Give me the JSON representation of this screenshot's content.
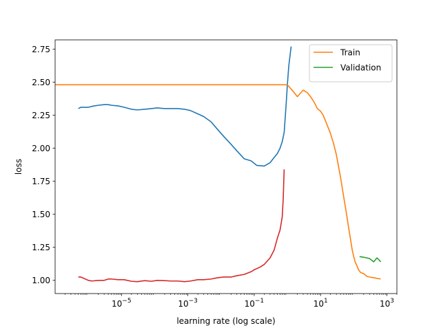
{
  "chart_data": {
    "type": "line",
    "xlabel": "learning rate (log scale)",
    "ylabel": "loss",
    "x_scale": "log",
    "xlim": [
      1e-07,
      2000
    ],
    "ylim": [
      0.9,
      2.82
    ],
    "x_ticks": [
      {
        "value": 1e-05,
        "base": "10",
        "exp": "−5"
      },
      {
        "value": 0.001,
        "base": "10",
        "exp": "−3"
      },
      {
        "value": 0.1,
        "base": "10",
        "exp": "−1"
      },
      {
        "value": 10,
        "base": "10",
        "exp": "1"
      },
      {
        "value": 1000,
        "base": "10",
        "exp": "3"
      }
    ],
    "y_ticks": [
      {
        "value": 1.0,
        "label": "1.00"
      },
      {
        "value": 1.25,
        "label": "1.25"
      },
      {
        "value": 1.5,
        "label": "1.50"
      },
      {
        "value": 1.75,
        "label": "1.75"
      },
      {
        "value": 2.0,
        "label": "2.00"
      },
      {
        "value": 2.25,
        "label": "2.25"
      },
      {
        "value": 2.5,
        "label": "2.50"
      },
      {
        "value": 2.75,
        "label": "2.75"
      }
    ],
    "grid": false,
    "legend_position": "top-right",
    "series": [
      {
        "color": "#1f77b4",
        "x": [
          5e-07,
          6e-07,
          1e-06,
          1.5e-06,
          2e-06,
          3e-06,
          4e-06,
          5e-06,
          8e-06,
          1.2e-05,
          2e-05,
          3e-05,
          5e-05,
          8e-05,
          0.00012,
          0.0002,
          0.0003,
          0.0005,
          0.0008,
          0.0012,
          0.002,
          0.003,
          0.005,
          0.008,
          0.012,
          0.02,
          0.03,
          0.05,
          0.08,
          0.12,
          0.2,
          0.3,
          0.4,
          0.5,
          0.6,
          0.7,
          0.8,
          0.9,
          1.0,
          1.1,
          1.2,
          1.3
        ],
        "y": [
          2.3,
          2.31,
          2.31,
          2.32,
          2.325,
          2.33,
          2.33,
          2.325,
          2.32,
          2.31,
          2.295,
          2.29,
          2.295,
          2.3,
          2.305,
          2.3,
          2.3,
          2.3,
          2.295,
          2.285,
          2.26,
          2.24,
          2.2,
          2.14,
          2.09,
          2.03,
          1.98,
          1.92,
          1.905,
          1.87,
          1.865,
          1.89,
          1.93,
          1.96,
          2.0,
          2.05,
          2.12,
          2.3,
          2.48,
          2.62,
          2.7,
          2.77
        ]
      },
      {
        "color": "#d62728",
        "x": [
          5e-07,
          6e-07,
          1e-06,
          1.3e-06,
          2e-06,
          3e-06,
          4e-06,
          5e-06,
          8e-06,
          1.2e-05,
          2e-05,
          3e-05,
          5e-05,
          8e-05,
          0.00012,
          0.0002,
          0.0003,
          0.0005,
          0.0008,
          0.0012,
          0.002,
          0.003,
          0.005,
          0.008,
          0.012,
          0.02,
          0.03,
          0.05,
          0.08,
          0.1,
          0.15,
          0.2,
          0.3,
          0.4,
          0.5,
          0.6,
          0.7,
          0.75,
          0.8
        ],
        "y": [
          1.025,
          1.025,
          1.0,
          0.995,
          1.0,
          1.0,
          1.01,
          1.01,
          1.005,
          1.005,
          0.993,
          0.99,
          0.998,
          0.993,
          1.0,
          0.998,
          0.995,
          0.995,
          0.99,
          0.995,
          1.005,
          1.005,
          1.01,
          1.02,
          1.025,
          1.025,
          1.035,
          1.045,
          1.065,
          1.08,
          1.1,
          1.12,
          1.17,
          1.23,
          1.32,
          1.38,
          1.48,
          1.62,
          1.84
        ]
      },
      {
        "name": "Train",
        "color": "#ff7f0e",
        "x": [
          1e-07,
          0.1,
          1.0,
          1.5,
          2.0,
          3.0,
          4.0,
          5.0,
          6.0,
          7.0,
          8.0,
          10,
          12,
          15,
          20,
          25,
          30,
          40,
          50,
          60,
          70,
          80,
          90,
          100,
          110,
          120,
          140,
          160,
          200,
          250,
          300,
          400,
          500,
          600,
          650
        ],
        "y": [
          2.48,
          2.48,
          2.48,
          2.43,
          2.39,
          2.44,
          2.42,
          2.39,
          2.36,
          2.33,
          2.3,
          2.28,
          2.25,
          2.19,
          2.11,
          2.03,
          1.95,
          1.78,
          1.63,
          1.51,
          1.4,
          1.31,
          1.23,
          1.18,
          1.14,
          1.12,
          1.08,
          1.06,
          1.05,
          1.03,
          1.025,
          1.02,
          1.015,
          1.012,
          1.01
        ]
      },
      {
        "name": "Validation",
        "color": "#2ca02c",
        "x": [
          150,
          200,
          300,
          400,
          500,
          600,
          650
        ],
        "y": [
          1.18,
          1.175,
          1.165,
          1.14,
          1.17,
          1.15,
          1.14
        ]
      }
    ]
  }
}
